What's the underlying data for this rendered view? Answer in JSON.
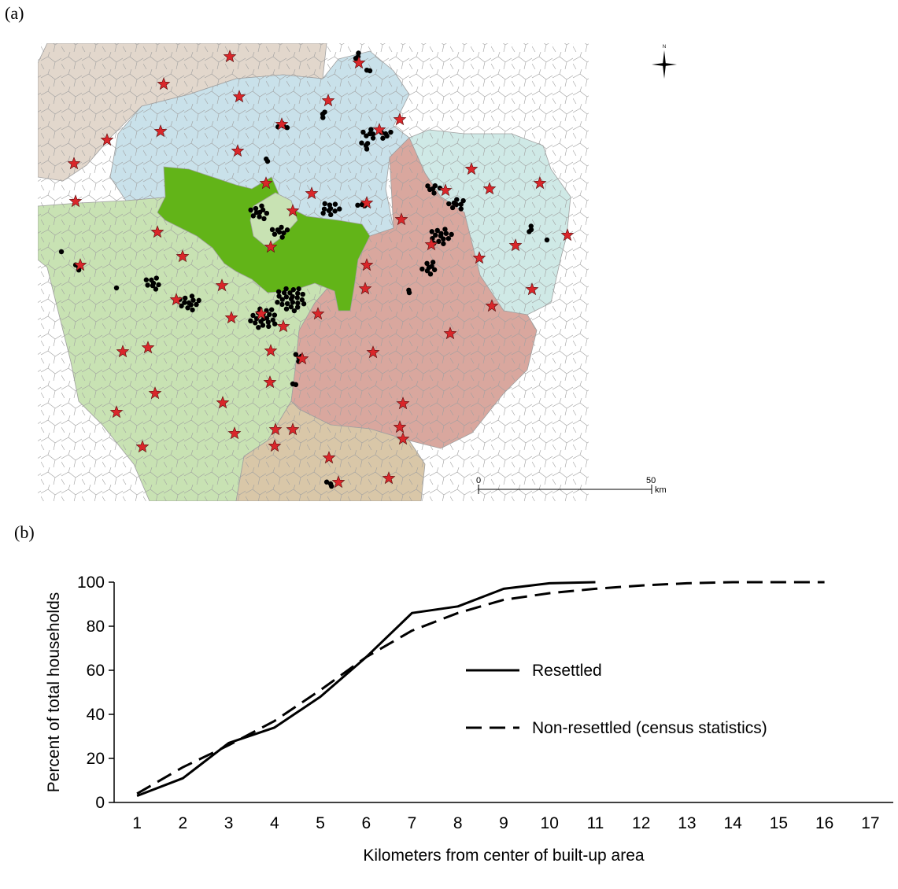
{
  "panel_a": {
    "label": "(a)",
    "compass_label": "N",
    "scale_bar": {
      "start": "0",
      "end": "50",
      "unit": "km"
    },
    "colors": {
      "north_region": "#e2d7cc",
      "blue_region": "#c9e1ea",
      "cyan_region": "#cfe9e6",
      "green_region": "#c8e2b3",
      "red_region": "#d9a79e",
      "south_region": "#d9c7a8",
      "builtup_area": "#62b418",
      "boundary": "#a0a0a0",
      "star": "#d9262a",
      "dot": "#000000"
    }
  },
  "panel_b": {
    "label": "(b)"
  },
  "chart_data": {
    "type": "line",
    "title": "",
    "xlabel": "Kilometers from center of built-up area",
    "ylabel": "Percent of total households",
    "x": [
      1,
      2,
      3,
      4,
      5,
      6,
      7,
      8,
      9,
      10,
      11,
      12,
      13,
      14,
      15,
      16,
      17
    ],
    "xlim": [
      0.5,
      17.5
    ],
    "ylim": [
      0,
      100
    ],
    "yticks": [
      0,
      20,
      40,
      60,
      80,
      100
    ],
    "grid": false,
    "legend_position": "right",
    "series": [
      {
        "name": "Resettled",
        "style": "solid",
        "x": [
          1,
          2,
          3,
          4,
          5,
          6,
          7,
          8,
          9,
          10,
          11
        ],
        "values": [
          3,
          11,
          27,
          34,
          48,
          66,
          86,
          89,
          97,
          99.5,
          100
        ]
      },
      {
        "name": "Non-resettled (census statistics)",
        "style": "dashed",
        "x": [
          1,
          2,
          3,
          4,
          5,
          6,
          7,
          8,
          9,
          10,
          11,
          12,
          13,
          14,
          15,
          16
        ],
        "values": [
          4,
          16,
          26,
          37,
          51,
          66,
          78,
          86,
          92,
          95,
          97,
          98.5,
          99.5,
          100,
          100,
          100
        ]
      }
    ]
  }
}
